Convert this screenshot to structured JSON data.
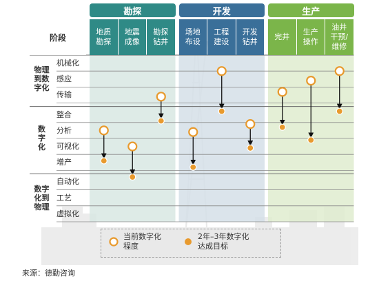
{
  "phases": [
    {
      "label": "勘探",
      "color": "#2f8a86"
    },
    {
      "label": "开发",
      "color": "#3a6f99"
    },
    {
      "label": "生产",
      "color": "#7bb54a"
    }
  ],
  "stage_header": "阶段",
  "columns": [
    {
      "label": "地质\n勘探",
      "phase": 0
    },
    {
      "label": "地震\n成像",
      "phase": 0
    },
    {
      "label": "勘探\n钻井",
      "phase": 0
    },
    {
      "label": "场地\n布设",
      "phase": 1
    },
    {
      "label": "工程\n建设",
      "phase": 1
    },
    {
      "label": "开发\n钻井",
      "phase": 1
    },
    {
      "label": "完井",
      "phase": 2
    },
    {
      "label": "生产\n操作",
      "phase": 2
    },
    {
      "label": "油井\n干预/\n维修",
      "phase": 2
    }
  ],
  "groups": [
    {
      "label": "物理\n到数\n字化",
      "rows": [
        "机械化",
        "感应",
        "传输"
      ]
    },
    {
      "label": "数\n字\n化",
      "rows": [
        "整合",
        "分析",
        "可视化",
        "增产"
      ]
    },
    {
      "label": "数字\n化到\n物理",
      "rows": [
        "自动化",
        "工艺",
        "虚拟化"
      ]
    }
  ],
  "transitions": [
    {
      "column": 2,
      "current": 2.6,
      "target": 3.9
    },
    {
      "column": 4,
      "current": 1.0,
      "target": 3.3
    },
    {
      "column": 5,
      "current": 4.1,
      "target": 5.6
    },
    {
      "column": 6,
      "current": 2.3,
      "target": 4.3
    },
    {
      "column": 7,
      "current": 1.6,
      "target": 5.1
    },
    {
      "column": 8,
      "current": 1.0,
      "target": 3.3
    }
  ],
  "transitions_digital": [
    {
      "column": 0,
      "current": 4.5,
      "target": 6.4
    },
    {
      "column": 1,
      "current": 5.5,
      "target": 7.2
    },
    {
      "column": 3,
      "current": 4.6,
      "target": 6.8
    }
  ],
  "legend": [
    {
      "label": "当前数字化\n程度",
      "kind": "current"
    },
    {
      "label": "2年–3年数字化\n达成目标",
      "kind": "target"
    }
  ],
  "source": "来源：德勤咨询",
  "colors": {
    "current_ring": "#e89a2e",
    "target_dot": "#e89a2e",
    "arrow": "#111111"
  }
}
